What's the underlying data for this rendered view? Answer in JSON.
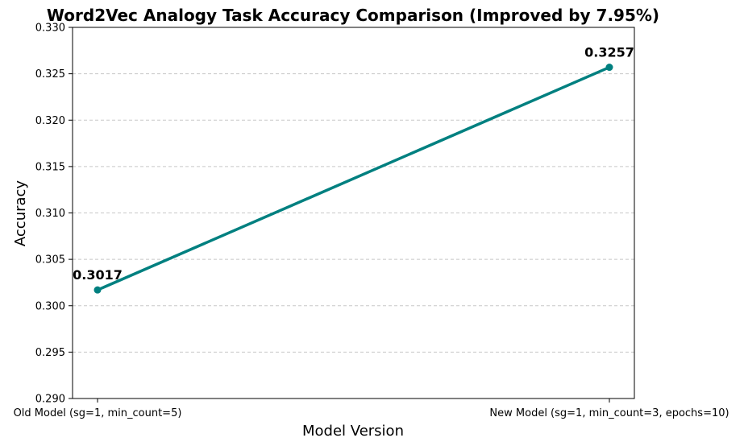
{
  "chart_data": {
    "type": "line",
    "title": "Word2Vec Analogy Task Accuracy Comparison (Improved by 7.95%)",
    "xlabel": "Model Version",
    "ylabel": "Accuracy",
    "categories": [
      "Old Model (sg=1, min_count=5)",
      "New Model (sg=1, min_count=3, epochs=10)"
    ],
    "series": [
      {
        "values": [
          0.3017,
          0.3257
        ],
        "color": "#008080"
      }
    ],
    "data_labels": [
      "0.3017",
      "0.3257"
    ],
    "ylim": [
      0.29,
      0.33
    ],
    "yticks": [
      "0.290",
      "0.295",
      "0.300",
      "0.305",
      "0.310",
      "0.315",
      "0.320",
      "0.325",
      "0.330"
    ],
    "grid": true,
    "grid_axis": "y"
  }
}
